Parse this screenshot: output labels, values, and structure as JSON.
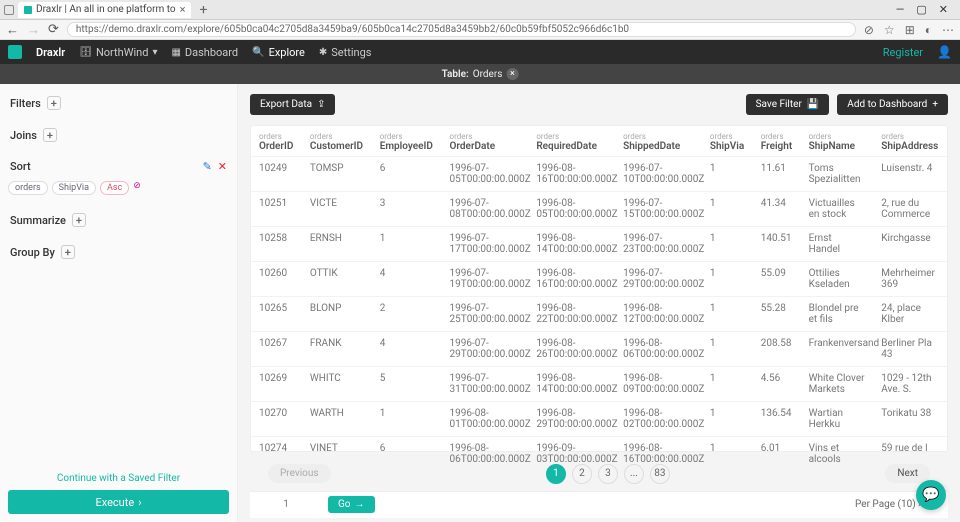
{
  "browser": {
    "tab_title": "Draxlr | An all in one platform to",
    "url": "https://demo.draxlr.com/explore/605b0ca04c2705d8a3459ba9/605b0ca14c2705d8a3459bb2/60c0b59fbf5052c966d6c1b0",
    "win": {
      "min": "—",
      "max": "▢",
      "close": "✕"
    }
  },
  "nav": {
    "brand": "Draxlr",
    "db": "NorthWind",
    "items": {
      "dashboard": "Dashboard",
      "explore": "Explore",
      "settings": "Settings"
    },
    "register": "Register"
  },
  "tablebar": {
    "label": "Table:",
    "name": "Orders"
  },
  "sidebar": {
    "filters": "Filters",
    "joins": "Joins",
    "sort": "Sort",
    "summarize": "Summarize",
    "groupby": "Group By",
    "chips": {
      "a": "orders",
      "b": "ShipVia",
      "c": "Asc"
    },
    "saved": "Continue with a Saved Filter",
    "execute": "Execute"
  },
  "toolbar": {
    "export": "Export Data",
    "save": "Save Filter",
    "add": "Add to Dashboard"
  },
  "table": {
    "sup": "orders",
    "cols": {
      "c0": "OrderID",
      "c1": "CustomerID",
      "c2": "EmployeeID",
      "c3": "OrderDate",
      "c4": "RequiredDate",
      "c5": "ShippedDate",
      "c6": "ShipVia",
      "c7": "Freight",
      "c8": "ShipName",
      "c9": "ShipAddress"
    },
    "rows": [
      {
        "c0": "10249",
        "c1": "TOMSP",
        "c2": "6",
        "c3": "1996-07-05T00:00:00.000Z",
        "c4": "1996-08-16T00:00:00.000Z",
        "c5": "1996-07-10T00:00:00.000Z",
        "c6": "1",
        "c7": "11.61",
        "c8": "Toms Spezialitten",
        "c9": "Luisenstr. 4"
      },
      {
        "c0": "10251",
        "c1": "VICTE",
        "c2": "3",
        "c3": "1996-07-08T00:00:00.000Z",
        "c4": "1996-08-05T00:00:00.000Z",
        "c5": "1996-07-15T00:00:00.000Z",
        "c6": "1",
        "c7": "41.34",
        "c8": "Victuailles en stock",
        "c9": "2, rue du Commerce"
      },
      {
        "c0": "10258",
        "c1": "ERNSH",
        "c2": "1",
        "c3": "1996-07-17T00:00:00.000Z",
        "c4": "1996-08-14T00:00:00.000Z",
        "c5": "1996-07-23T00:00:00.000Z",
        "c6": "1",
        "c7": "140.51",
        "c8": "Ernst Handel",
        "c9": "Kirchgasse"
      },
      {
        "c0": "10260",
        "c1": "OTTIK",
        "c2": "4",
        "c3": "1996-07-19T00:00:00.000Z",
        "c4": "1996-08-16T00:00:00.000Z",
        "c5": "1996-07-29T00:00:00.000Z",
        "c6": "1",
        "c7": "55.09",
        "c8": "Ottilies Kseladen",
        "c9": "Mehrheimer 369"
      },
      {
        "c0": "10265",
        "c1": "BLONP",
        "c2": "2",
        "c3": "1996-07-25T00:00:00.000Z",
        "c4": "1996-08-22T00:00:00.000Z",
        "c5": "1996-08-12T00:00:00.000Z",
        "c6": "1",
        "c7": "55.28",
        "c8": "Blondel pre et fils",
        "c9": "24, place Klber"
      },
      {
        "c0": "10267",
        "c1": "FRANK",
        "c2": "4",
        "c3": "1996-07-29T00:00:00.000Z",
        "c4": "1996-08-26T00:00:00.000Z",
        "c5": "1996-08-06T00:00:00.000Z",
        "c6": "1",
        "c7": "208.58",
        "c8": "Frankenversand",
        "c9": "Berliner Pla 43"
      },
      {
        "c0": "10269",
        "c1": "WHITC",
        "c2": "5",
        "c3": "1996-07-31T00:00:00.000Z",
        "c4": "1996-08-14T00:00:00.000Z",
        "c5": "1996-08-09T00:00:00.000Z",
        "c6": "1",
        "c7": "4.56",
        "c8": "White Clover Markets",
        "c9": "1029 - 12th Ave. S."
      },
      {
        "c0": "10270",
        "c1": "WARTH",
        "c2": "1",
        "c3": "1996-08-01T00:00:00.000Z",
        "c4": "1996-08-29T00:00:00.000Z",
        "c5": "1996-08-02T00:00:00.000Z",
        "c6": "1",
        "c7": "136.54",
        "c8": "Wartian Herkku",
        "c9": "Torikatu 38"
      },
      {
        "c0": "10274",
        "c1": "VINET",
        "c2": "6",
        "c3": "1996-08-06T00:00:00.000Z",
        "c4": "1996-09-03T00:00:00.000Z",
        "c5": "1996-08-16T00:00:00.000Z",
        "c6": "1",
        "c7": "6.01",
        "c8": "Vins et alcools",
        "c9": "59 rue de l"
      }
    ]
  },
  "pager": {
    "prev": "Previous",
    "next": "Next",
    "pages": {
      "p1": "1",
      "p2": "2",
      "p3": "3",
      "dots": "...",
      "last": "83"
    },
    "goto_val": "1",
    "go": "Go",
    "perpage": "Per Page (10)"
  }
}
